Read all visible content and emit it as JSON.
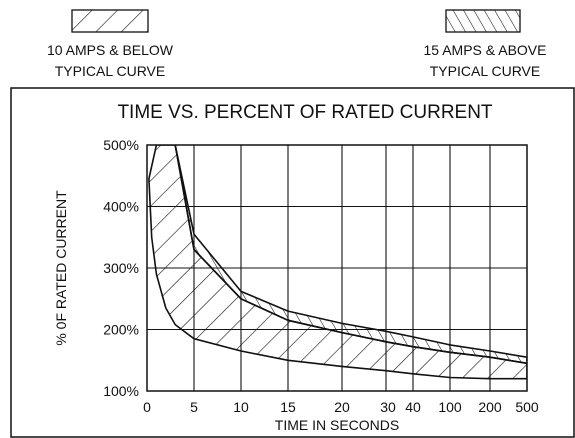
{
  "legend": [
    {
      "pattern": "forward-hatch",
      "line1": "10 AMPS & BELOW",
      "line2": "TYPICAL CURVE"
    },
    {
      "pattern": "back-hatch",
      "line1": "15 AMPS & ABOVE",
      "line2": "TYPICAL CURVE"
    }
  ],
  "chart_data": {
    "type": "area",
    "title": "TIME VS. PERCENT OF RATED CURRENT",
    "xlabel": "TIME IN SECONDS",
    "ylabel": "% 0F RATED CURRENT",
    "x_ticks": [
      "0",
      "5",
      "10",
      "15",
      "20",
      "30",
      "40",
      "100",
      "200",
      "500"
    ],
    "y_ticks": [
      {
        "value": 100,
        "label": "100%"
      },
      {
        "value": 200,
        "label": "200%"
      },
      {
        "value": 300,
        "label": "300%"
      },
      {
        "value": 400,
        "label": "400%"
      },
      {
        "value": 500,
        "label": "500%"
      }
    ],
    "ylim": [
      100,
      500
    ],
    "x_scale": "piecewise (0–20 linear, 30–500 compressed)",
    "grid": true,
    "legend_position": "top",
    "series": [
      {
        "name": "10 AMPS & BELOW",
        "pattern": "forward-hatch",
        "upper": [
          [
            0.2,
            445
          ],
          [
            1,
            500
          ],
          [
            2,
            500
          ],
          [
            3,
            500
          ],
          [
            5,
            330
          ],
          [
            10,
            250
          ],
          [
            15,
            215
          ],
          [
            20,
            195
          ],
          [
            30,
            180
          ],
          [
            40,
            172
          ],
          [
            100,
            163
          ],
          [
            200,
            155
          ],
          [
            500,
            145
          ]
        ],
        "lower": [
          [
            0.2,
            445
          ],
          [
            0.5,
            350
          ],
          [
            1,
            290
          ],
          [
            2,
            235
          ],
          [
            3,
            208
          ],
          [
            5,
            185
          ],
          [
            10,
            165
          ],
          [
            15,
            150
          ],
          [
            20,
            140
          ],
          [
            30,
            133
          ],
          [
            40,
            128
          ],
          [
            100,
            122
          ],
          [
            200,
            120
          ],
          [
            500,
            120
          ]
        ]
      },
      {
        "name": "15 AMPS & ABOVE",
        "pattern": "back-hatch",
        "upper": [
          [
            3,
            500
          ],
          [
            5,
            355
          ],
          [
            10,
            262
          ],
          [
            15,
            230
          ],
          [
            20,
            210
          ],
          [
            30,
            197
          ],
          [
            40,
            188
          ],
          [
            100,
            175
          ],
          [
            200,
            165
          ],
          [
            500,
            155
          ]
        ],
        "lower": [
          [
            3,
            500
          ],
          [
            5,
            330
          ],
          [
            10,
            250
          ],
          [
            15,
            215
          ],
          [
            20,
            195
          ],
          [
            30,
            180
          ],
          [
            40,
            172
          ],
          [
            100,
            163
          ],
          [
            200,
            155
          ],
          [
            500,
            145
          ]
        ]
      }
    ]
  }
}
